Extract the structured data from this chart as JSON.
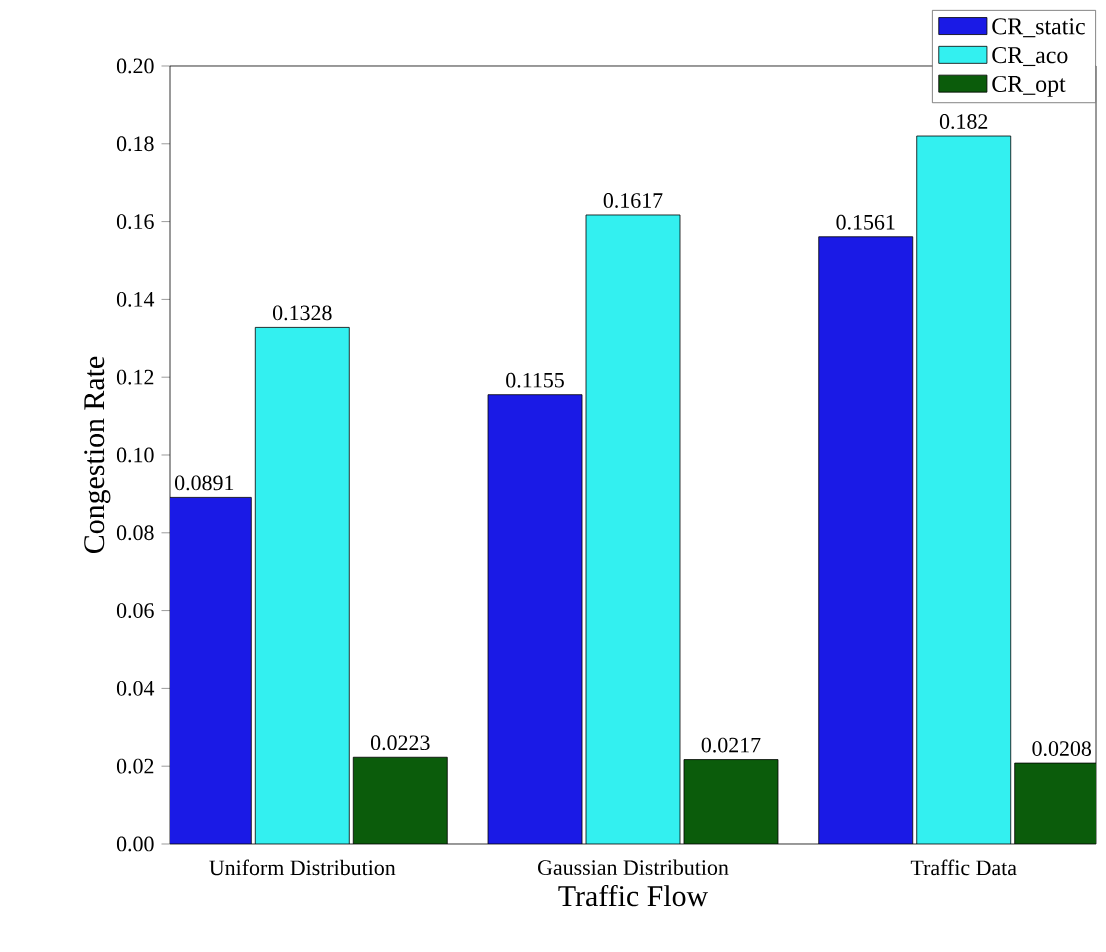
{
  "chart_data": {
    "type": "bar",
    "xlabel": "Traffic Flow",
    "ylabel": "Congestion Rate",
    "categories": [
      "Uniform Distribution",
      "Gaussian Distribution",
      "Traffic Data"
    ],
    "series": [
      {
        "name": "CR_static",
        "color": "#1a1ae6",
        "values": [
          0.0891,
          0.1155,
          0.1561
        ]
      },
      {
        "name": "CR_aco",
        "color": "#33f0f0",
        "values": [
          0.1328,
          0.1617,
          0.182
        ]
      },
      {
        "name": "CR_opt",
        "color": "#0b5c0b",
        "values": [
          0.0223,
          0.0217,
          0.0208
        ]
      }
    ],
    "ylim": [
      0,
      0.2
    ],
    "yticks": [
      "0.00",
      "0.02",
      "0.04",
      "0.06",
      "0.08",
      "0.10",
      "0.12",
      "0.14",
      "0.16",
      "0.18",
      "0.20"
    ],
    "data_labels": true,
    "legend": "top right",
    "grid": false
  }
}
